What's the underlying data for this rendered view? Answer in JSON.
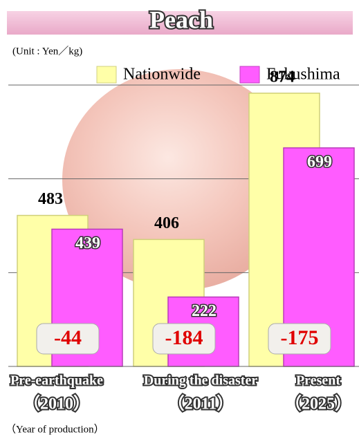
{
  "chart_data": {
    "type": "bar",
    "title": "Peach",
    "subtitle": "(Unit : Yen／kg)",
    "x_label": "（Year of production）",
    "categories": [
      [
        "Pre-earthquake",
        "（2010）"
      ],
      [
        "During the disaster",
        "（2011）"
      ],
      [
        "Present",
        "（2025）"
      ]
    ],
    "series": [
      {
        "name": "Nationwide",
        "color": "#ffffa8",
        "values": [
          483,
          406,
          874
        ]
      },
      {
        "name": "Fukushima",
        "color": "#ff5cff",
        "values": [
          439,
          222,
          699
        ]
      }
    ],
    "differences": [
      -44,
      -184,
      -175
    ],
    "ylim": [
      0,
      900
    ],
    "yticks": [
      0,
      300,
      600,
      900
    ],
    "grid": true
  }
}
